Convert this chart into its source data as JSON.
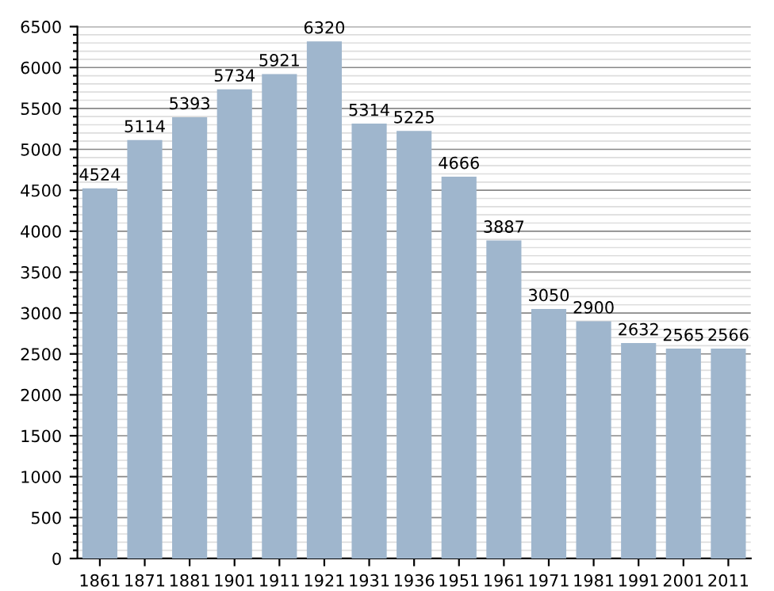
{
  "chart_data": {
    "type": "bar",
    "categories": [
      "1861",
      "1871",
      "1881",
      "1901",
      "1911",
      "1921",
      "1931",
      "1936",
      "1951",
      "1961",
      "1971",
      "1981",
      "1991",
      "2001",
      "2011"
    ],
    "values": [
      4524,
      5114,
      5393,
      5734,
      5921,
      6320,
      5314,
      5225,
      4666,
      3887,
      3050,
      2900,
      2632,
      2565,
      2566
    ],
    "color": "#9fb6cd",
    "data_labels": true,
    "grid": "y",
    "ylim": [
      0,
      6500
    ],
    "yticks": [
      0,
      {
        "value": 100,
        "label": null
      },
      {
        "value": 200,
        "label": null
      },
      {
        "value": 300,
        "label": null
      },
      {
        "value": 400,
        "label": null
      },
      500,
      {
        "value": 600,
        "label": null
      },
      {
        "value": 700,
        "label": null
      },
      {
        "value": 800,
        "label": null
      },
      {
        "value": 900,
        "label": null
      },
      1000,
      {
        "value": 1100,
        "label": null
      },
      {
        "value": 1200,
        "label": null
      },
      {
        "value": 1300,
        "label": null
      },
      {
        "value": 1400,
        "label": null
      },
      1500,
      {
        "value": 1600,
        "label": null
      },
      {
        "value": 1700,
        "label": null
      },
      {
        "value": 1800,
        "label": null
      },
      {
        "value": 1900,
        "label": null
      },
      2000,
      {
        "value": 2100,
        "label": null
      },
      {
        "value": 2200,
        "label": null
      },
      {
        "value": 2300,
        "label": null
      },
      {
        "value": 2400,
        "label": null
      },
      2500,
      {
        "value": 2600,
        "label": null
      },
      {
        "value": 2700,
        "label": null
      },
      {
        "value": 2800,
        "label": null
      },
      {
        "value": 2900,
        "label": null
      },
      3000,
      {
        "value": 3100,
        "label": null
      },
      {
        "value": 3200,
        "label": null
      },
      {
        "value": 3300,
        "label": null
      },
      {
        "value": 3400,
        "label": null
      },
      3500,
      {
        "value": 3600,
        "label": null
      },
      {
        "value": 3700,
        "label": null
      },
      {
        "value": 3800,
        "label": null
      },
      {
        "value": 3900,
        "label": null
      },
      4000,
      {
        "value": 4100,
        "label": null
      },
      {
        "value": 4200,
        "label": null
      },
      {
        "value": 4300,
        "label": null
      },
      {
        "value": 4400,
        "label": null
      },
      4500,
      {
        "value": 4600,
        "label": null
      },
      {
        "value": 4700,
        "label": null
      },
      {
        "value": 4800,
        "label": null
      },
      {
        "value": 4900,
        "label": null
      },
      5000,
      {
        "value": 5100,
        "label": null
      },
      {
        "value": 5200,
        "label": null
      },
      {
        "value": 5300,
        "label": null
      },
      {
        "value": 5400,
        "label": null
      },
      5500,
      {
        "value": 5600,
        "label": null
      },
      {
        "value": 5700,
        "label": null
      },
      {
        "value": 5800,
        "label": null
      },
      {
        "value": 5900,
        "label": null
      },
      6000,
      {
        "value": 6100,
        "label": null
      },
      {
        "value": 6200,
        "label": null
      },
      {
        "value": 6300,
        "label": null
      },
      {
        "value": 6400,
        "label": null
      },
      6500
    ]
  }
}
